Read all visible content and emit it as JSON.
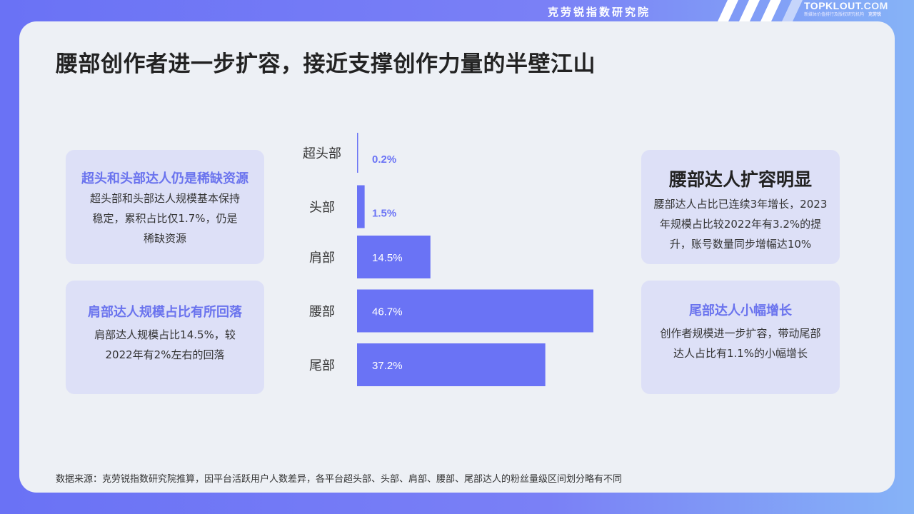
{
  "header": {
    "brand_cn": "克劳锐指数研究院",
    "brand_en_main": "TOPKLOUT",
    "brand_en_suffix": ".COM",
    "brand_tagline": "新媒体价值排行及版权研究机构",
    "brand_mini": "克劳锐"
  },
  "page": {
    "title": "腰部创作者进一步扩容，接近支撑创作力量的半壁江山",
    "footnote": "数据来源：克劳锐指数研究院推算，因平台活跃用户人数差异，各平台超头部、头部、肩部、腰部、尾部达人的粉丝量级区间划分略有不同"
  },
  "boxes": {
    "top_left": {
      "title": "超头和头部达人仍是稀缺资源",
      "body": "超头部和头部达人规模基本保持稳定，累积占比仅1.7%，仍是稀缺资源"
    },
    "bottom_left": {
      "title": "肩部达人规模占比有所回落",
      "body": "肩部达人规模占比14.5%，较2022年有2%左右的回落"
    },
    "top_right": {
      "title": "腰部达人扩容明显",
      "body": "腰部达人占比已连续3年增长，2023年规模占比较2022年有3.2%的提升，账号数量同步增幅达10%"
    },
    "bottom_right": {
      "title": "尾部达人小幅增长",
      "body": "创作者规模进一步扩容，带动尾部达人占比有1.1%的小幅增长"
    }
  },
  "chart_data": {
    "type": "bar",
    "orientation": "horizontal",
    "categories": [
      "超头部",
      "头部",
      "肩部",
      "腰部",
      "尾部"
    ],
    "values": [
      0.2,
      1.5,
      14.5,
      46.7,
      37.2
    ],
    "value_labels": [
      "0.2%",
      "1.5%",
      "14.5%",
      "46.7%",
      "37.2%"
    ],
    "xlim": [
      0,
      46.7
    ],
    "bar_color": "#6a73f5",
    "outside_label_color": "#6a73f5",
    "inside_label_color": "#ffffff",
    "grid": false,
    "legend": "none"
  },
  "colors": {
    "card_background": "#edf0f5",
    "box_background": "#dde0f7",
    "accent": "#6a73ee",
    "title_text": "#222222"
  }
}
